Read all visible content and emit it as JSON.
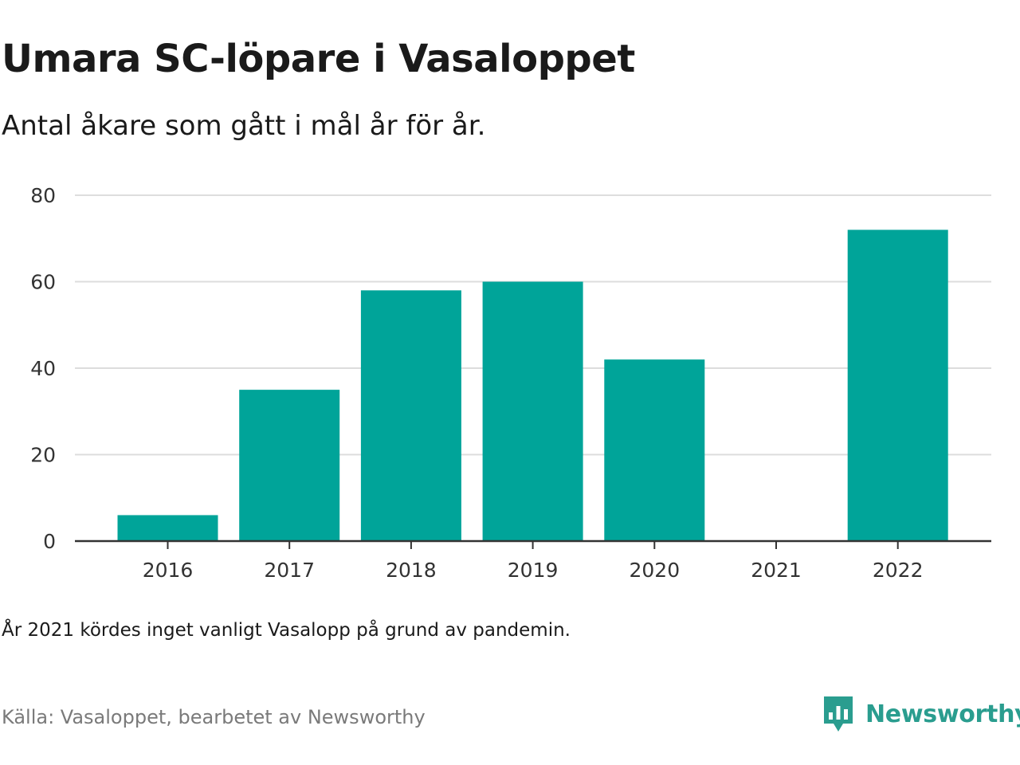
{
  "title": "Umara SC-löpare i Vasaloppet",
  "subtitle": "Antal åkare som gått i mål år för år.",
  "note": "År 2021 kördes inget vanligt Vasalopp på grund av pandemin.",
  "source": "Källa: Vasaloppet, bearbetet av Newsworthy",
  "brand": {
    "name": "Newsworthy",
    "icon": "newsworthy-logo-icon",
    "color": "#2a9d8f"
  },
  "colors": {
    "bar": "#00a499",
    "grid": "#dddddd",
    "axis": "#333333"
  },
  "chart_data": {
    "type": "bar",
    "categories": [
      "2016",
      "2017",
      "2018",
      "2019",
      "2020",
      "2021",
      "2022"
    ],
    "values": [
      6,
      35,
      58,
      60,
      42,
      0,
      72
    ],
    "title": "Umara SC-löpare i Vasaloppet",
    "subtitle": "Antal åkare som gått i mål år för år.",
    "xlabel": "",
    "ylabel": "",
    "ylim": [
      0,
      80
    ],
    "yticks": [
      0,
      20,
      40,
      60,
      80
    ],
    "grid": true,
    "legend": "none"
  }
}
